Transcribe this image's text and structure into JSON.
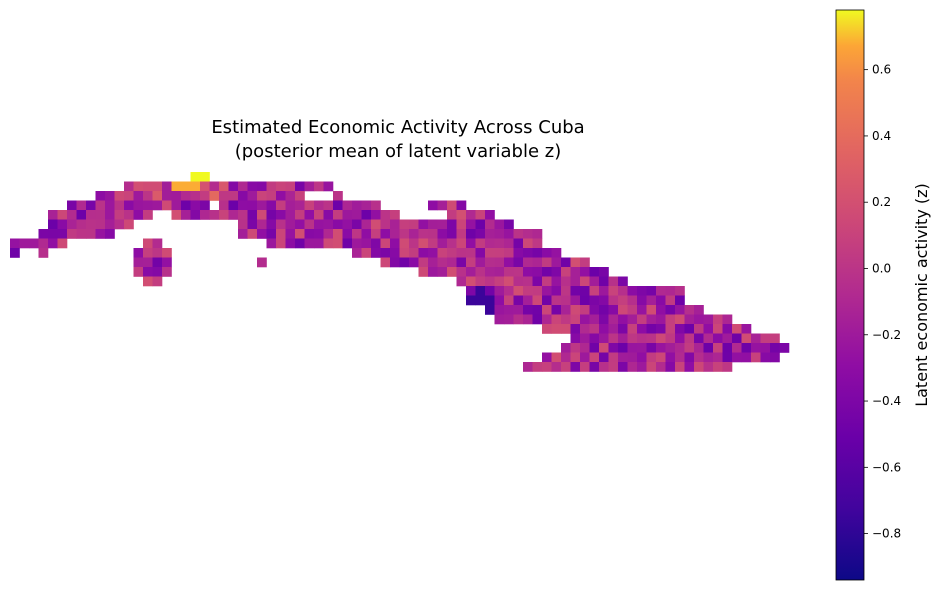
{
  "chart_data": {
    "type": "heatmap",
    "title": "Estimated Economic Activity Across Cuba",
    "subtitle": "(posterior mean of latent variable z)",
    "colormap": "plasma",
    "colorbar": {
      "label": "Latent economic activity (z)",
      "range": [
        -0.94,
        0.78
      ],
      "ticks": [
        -0.8,
        -0.6,
        -0.4,
        -0.2,
        0.0,
        0.2,
        0.4,
        0.6
      ],
      "tick_labels": [
        "−0.8",
        "−0.6",
        "−0.4",
        "−0.2",
        "0.0",
        "0.2",
        "0.4",
        "0.6"
      ]
    },
    "grid": {
      "rows": 24,
      "cols": 82,
      "cell_mask_rows": [
        [
          19,
          21
        ],
        [
          12,
          34,
          37
        ],
        [
          9,
          31
        ],
        [
          6,
          39,
          44,
          48
        ],
        [
          4,
          42,
          44,
          51
        ],
        [
          3,
          52,
          56,
          71
        ],
        [
          1,
          56,
          59,
          72
        ],
        [
          0,
          3,
          5,
          16,
          20,
          80
        ],
        [
          13,
          18
        ],
        [
          13,
          18
        ],
        [
          14,
          17
        ],
        [
          48,
          48,
          56,
          72
        ],
        [
          48,
          71
        ],
        [
          48,
          71
        ],
        [
          50,
          73
        ],
        [
          56,
          80
        ],
        [
          56,
          80
        ],
        [
          58,
          82
        ],
        [
          59,
          82
        ],
        [
          54,
          77
        ]
      ],
      "values_note": "cells"
    }
  },
  "cells": "see script"
}
